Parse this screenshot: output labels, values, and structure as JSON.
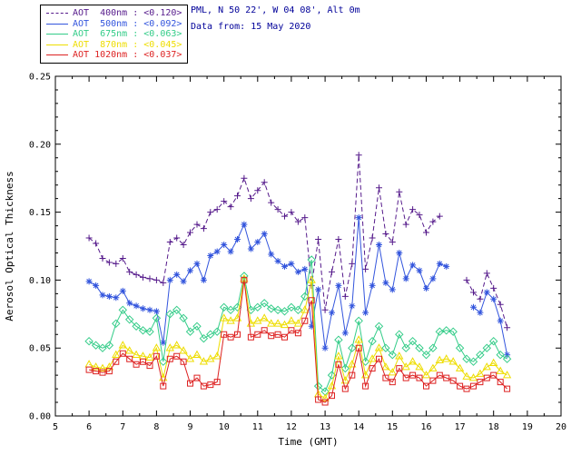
{
  "header": {
    "line1": "PML, N 50 22', W 04 08', Alt 0m",
    "line2": "Data from: 15 May 2020",
    "color": "#000099"
  },
  "legend": {
    "entries": [
      {
        "label": "AOT  400nm : <0.120>",
        "color": "#551a8b",
        "line": "dashed"
      },
      {
        "label": "AOT  500nm : <0.092>",
        "color": "#3355dd",
        "line": "solid"
      },
      {
        "label": "AOT  675nm : <0.063>",
        "color": "#33cc88",
        "line": "solid"
      },
      {
        "label": "AOT  870nm : <0.045>",
        "color": "#eedd00",
        "line": "solid"
      },
      {
        "label": "AOT 1020nm : <0.037>",
        "color": "#dd2222",
        "line": "solid"
      }
    ]
  },
  "chart_data": {
    "type": "line",
    "title": "",
    "xlabel": "Time (GMT)",
    "ylabel": "Aerosol Optical Thickness",
    "xlim": [
      5,
      20
    ],
    "ylim": [
      0,
      0.25
    ],
    "xticks": [
      5,
      6,
      7,
      8,
      9,
      10,
      11,
      12,
      13,
      14,
      15,
      16,
      17,
      18,
      19,
      20
    ],
    "yticks": [
      0.0,
      0.05,
      0.1,
      0.15,
      0.2,
      0.25
    ],
    "grid": false,
    "legend_position": "top-left",
    "x": [
      6.0,
      6.2,
      6.4,
      6.6,
      6.8,
      7.0,
      7.2,
      7.4,
      7.6,
      7.8,
      8.0,
      8.2,
      8.4,
      8.6,
      8.8,
      9.0,
      9.2,
      9.4,
      9.6,
      9.8,
      10.0,
      10.2,
      10.4,
      10.6,
      10.8,
      11.0,
      11.2,
      11.4,
      11.6,
      11.8,
      12.0,
      12.2,
      12.4,
      12.6,
      12.8,
      13.0,
      13.2,
      13.4,
      13.6,
      13.8,
      14.0,
      14.2,
      14.4,
      14.6,
      14.8,
      15.0,
      15.2,
      15.4,
      15.6,
      15.8,
      16.0,
      16.2,
      16.4,
      16.6,
      16.8,
      17.0,
      17.2,
      17.4,
      17.6,
      17.8,
      18.0,
      18.2,
      18.4
    ],
    "series": [
      {
        "name": "AOT 400nm",
        "wavelength_nm": 400,
        "mean": "<0.120>",
        "color": "#551a8b",
        "marker": "plus",
        "linestyle": "dashed",
        "y": [
          0.131,
          0.127,
          0.116,
          0.113,
          0.112,
          0.116,
          0.106,
          0.104,
          0.102,
          0.101,
          0.1,
          0.098,
          0.128,
          0.131,
          0.126,
          0.135,
          0.141,
          0.138,
          0.15,
          0.152,
          0.158,
          0.154,
          0.162,
          0.175,
          0.16,
          0.166,
          0.172,
          0.157,
          0.152,
          0.147,
          0.15,
          0.143,
          0.146,
          0.096,
          0.13,
          0.078,
          0.106,
          0.13,
          0.088,
          0.112,
          0.192,
          0.108,
          0.131,
          0.168,
          0.134,
          0.128,
          0.165,
          0.141,
          0.152,
          0.148,
          0.135,
          0.143,
          0.147,
          null,
          null,
          null,
          0.1,
          0.091,
          0.086,
          0.105,
          0.094,
          0.082,
          0.065
        ]
      },
      {
        "name": "AOT 500nm",
        "wavelength_nm": 500,
        "mean": "<0.092>",
        "color": "#3355dd",
        "marker": "star",
        "linestyle": "solid",
        "y": [
          0.099,
          0.096,
          0.089,
          0.088,
          0.087,
          0.092,
          0.083,
          0.081,
          0.079,
          0.078,
          0.077,
          0.054,
          0.1,
          0.104,
          0.099,
          0.107,
          0.112,
          0.1,
          0.118,
          0.121,
          0.126,
          0.121,
          0.13,
          0.141,
          0.123,
          0.128,
          0.134,
          0.119,
          0.114,
          0.11,
          0.112,
          0.106,
          0.108,
          0.066,
          0.093,
          0.05,
          0.076,
          0.096,
          0.061,
          0.081,
          0.146,
          0.076,
          0.096,
          0.126,
          0.098,
          0.093,
          0.12,
          0.101,
          0.111,
          0.107,
          0.094,
          0.101,
          0.112,
          0.11,
          null,
          null,
          null,
          0.08,
          0.076,
          0.091,
          0.086,
          0.07,
          0.045
        ]
      },
      {
        "name": "AOT 675nm",
        "wavelength_nm": 675,
        "mean": "<0.063>",
        "color": "#33cc88",
        "marker": "diamond",
        "linestyle": "solid",
        "y": [
          0.055,
          0.052,
          0.05,
          0.052,
          0.068,
          0.078,
          0.071,
          0.066,
          0.063,
          0.062,
          0.072,
          0.04,
          0.075,
          0.078,
          0.072,
          0.062,
          0.066,
          0.057,
          0.06,
          0.062,
          0.08,
          0.078,
          0.08,
          0.103,
          0.078,
          0.08,
          0.083,
          0.079,
          0.078,
          0.077,
          0.08,
          0.078,
          0.088,
          0.115,
          0.022,
          0.018,
          0.03,
          0.056,
          0.035,
          0.05,
          0.07,
          0.04,
          0.055,
          0.066,
          0.05,
          0.045,
          0.06,
          0.05,
          0.055,
          0.05,
          0.045,
          0.05,
          0.062,
          0.063,
          0.062,
          0.05,
          0.042,
          0.04,
          0.045,
          0.05,
          0.055,
          0.045,
          0.042
        ]
      },
      {
        "name": "AOT 870nm",
        "wavelength_nm": 870,
        "mean": "<0.045>",
        "color": "#eedd00",
        "marker": "triangle",
        "linestyle": "solid",
        "y": [
          0.038,
          0.036,
          0.035,
          0.036,
          0.045,
          0.052,
          0.048,
          0.045,
          0.044,
          0.043,
          0.05,
          0.028,
          0.05,
          0.052,
          0.048,
          0.042,
          0.045,
          0.04,
          0.042,
          0.044,
          0.072,
          0.07,
          0.072,
          0.101,
          0.068,
          0.07,
          0.072,
          0.068,
          0.068,
          0.067,
          0.07,
          0.068,
          0.078,
          0.1,
          0.016,
          0.013,
          0.022,
          0.044,
          0.026,
          0.038,
          0.056,
          0.03,
          0.042,
          0.05,
          0.036,
          0.032,
          0.044,
          0.036,
          0.04,
          0.036,
          0.03,
          0.035,
          0.041,
          0.042,
          0.04,
          0.035,
          0.029,
          0.028,
          0.031,
          0.036,
          0.039,
          0.033,
          0.03
        ]
      },
      {
        "name": "AOT 1020nm",
        "wavelength_nm": 1020,
        "mean": "<0.037>",
        "color": "#dd2222",
        "marker": "square",
        "linestyle": "solid",
        "y": [
          0.034,
          0.033,
          0.032,
          0.033,
          0.04,
          0.046,
          0.042,
          0.038,
          0.04,
          0.037,
          0.044,
          0.022,
          0.042,
          0.044,
          0.04,
          0.024,
          0.028,
          0.022,
          0.023,
          0.025,
          0.06,
          0.058,
          0.06,
          0.1,
          0.058,
          0.06,
          0.063,
          0.059,
          0.06,
          0.058,
          0.063,
          0.061,
          0.07,
          0.085,
          0.012,
          0.01,
          0.015,
          0.038,
          0.02,
          0.03,
          0.05,
          0.022,
          0.035,
          0.042,
          0.028,
          0.025,
          0.035,
          0.028,
          0.03,
          0.028,
          0.022,
          0.026,
          0.03,
          0.028,
          0.026,
          0.022,
          0.02,
          0.022,
          0.025,
          0.028,
          0.03,
          0.025,
          0.02
        ]
      }
    ]
  }
}
